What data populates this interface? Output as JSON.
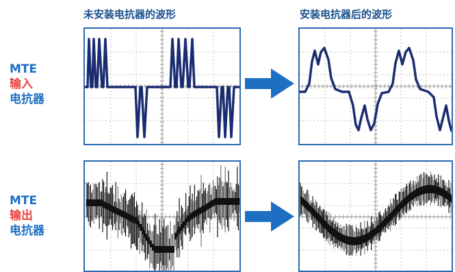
{
  "headers": {
    "before": "未安装电抗器的波形",
    "after": "安装电抗器后的波形"
  },
  "rows": {
    "input": {
      "line1": "MTE",
      "line2": "输入",
      "line3": "电抗器"
    },
    "output": {
      "line1": "MTE",
      "line2": "输出",
      "line3": "电抗器"
    }
  },
  "colors": {
    "border": "#2b69b0",
    "waveform": "#1a2c70",
    "arrow": "#1d6fc4",
    "label_blue": "#1d6fc4",
    "label_red": "#e8433e",
    "noise": "#111111"
  },
  "icons": [
    "right-arrow-icon",
    "right-arrow-icon"
  ]
}
